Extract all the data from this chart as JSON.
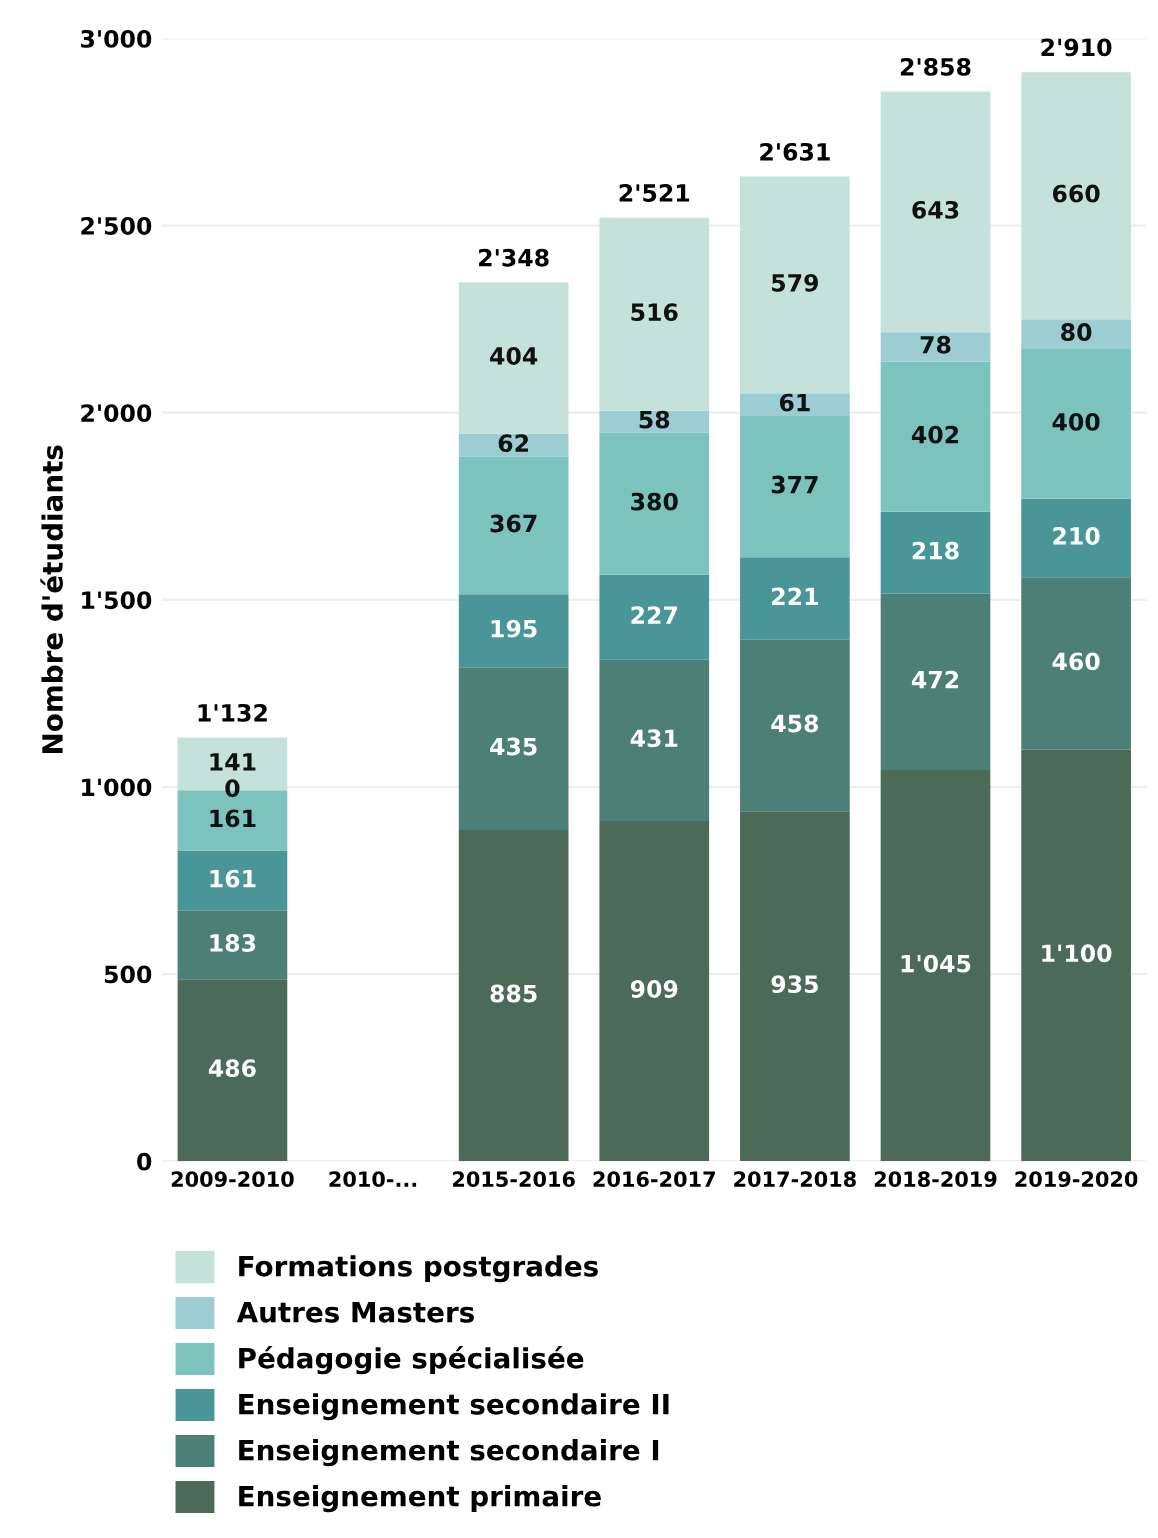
{
  "chart_data": {
    "type": "bar",
    "stacked": true,
    "ylabel": "Nombre d'étudiants",
    "categories": [
      "2009-2010",
      "2010-...",
      "2015-2016",
      "2016-2017",
      "2017-2018",
      "2018-2019",
      "2019-2020"
    ],
    "series": [
      {
        "name": "Enseignement primaire",
        "color": "#4b6b58",
        "values": [
          486,
          null,
          885,
          909,
          935,
          1045,
          1100
        ],
        "value_labels": [
          "486",
          null,
          "885",
          "909",
          "935",
          "1'045",
          "1'100"
        ]
      },
      {
        "name": "Enseignement secondaire I",
        "color": "#4c7f75",
        "values": [
          183,
          null,
          435,
          431,
          458,
          472,
          460
        ],
        "value_labels": [
          "183",
          null,
          "435",
          "431",
          "458",
          "472",
          "460"
        ]
      },
      {
        "name": "Enseignement secondaire II",
        "color": "#4a9597",
        "values": [
          161,
          null,
          195,
          227,
          221,
          218,
          210
        ],
        "value_labels": [
          "161",
          null,
          "195",
          "227",
          "221",
          "218",
          "210"
        ]
      },
      {
        "name": "Pédagogie spécialisée",
        "color": "#7dc3bd",
        "values": [
          161,
          null,
          367,
          380,
          377,
          402,
          400
        ],
        "value_labels": [
          "161",
          null,
          "367",
          "380",
          "377",
          "402",
          "400"
        ]
      },
      {
        "name": "Autres Masters",
        "color": "#9bcdd2",
        "values": [
          0,
          null,
          62,
          58,
          61,
          78,
          80
        ],
        "value_labels": [
          "0",
          null,
          "62",
          "58",
          "61",
          "78",
          "80"
        ]
      },
      {
        "name": "Formations postgrades",
        "color": "#c4e2da",
        "values": [
          141,
          null,
          404,
          516,
          579,
          643,
          660
        ],
        "value_labels": [
          "141",
          null,
          "404",
          "516",
          "579",
          "643",
          "660"
        ]
      }
    ],
    "totals": [
      "1'132",
      null,
      "2'348",
      "2'521",
      "2'631",
      "2'858",
      "2'910"
    ],
    "ylim": [
      0,
      3000
    ],
    "yticks": [
      0,
      500,
      {
        "value": 1000,
        "label": "1'000"
      },
      {
        "value": 1500,
        "label": "1'500"
      },
      {
        "value": 2000,
        "label": "2'000"
      },
      {
        "value": 2500,
        "label": "2'500"
      },
      {
        "value": 3000,
        "label": "3'000"
      }
    ],
    "grid": "y",
    "legend": "bottom left"
  }
}
